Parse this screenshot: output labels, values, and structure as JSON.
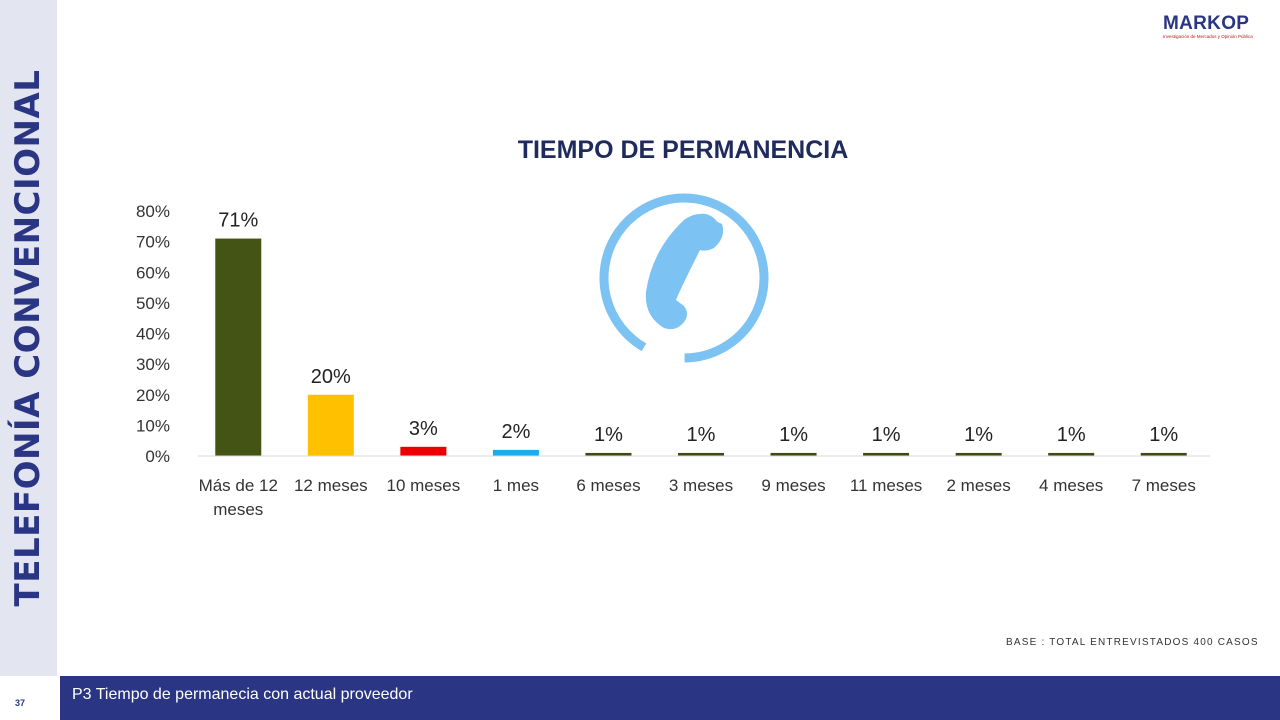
{
  "side_title": "TELEFONÍA CONVENCIONAL",
  "logo": {
    "name": "MARKOP",
    "tagline": "Investigación de Mercados y Opinión Pública"
  },
  "base_note": "BASE   : TOTAL ENTREVISTADOS 400 CASOS",
  "footer": {
    "text": "P3 Tiempo de permanecia con actual proveedor",
    "page_number": "37"
  },
  "chart_data": {
    "type": "bar",
    "title": "TIEMPO DE PERMANENCIA",
    "xlabel": "",
    "ylabel": "",
    "ylim": [
      0,
      80
    ],
    "yticks": [
      "0%",
      "10%",
      "20%",
      "30%",
      "40%",
      "50%",
      "60%",
      "70%",
      "80%"
    ],
    "grid": false,
    "categories": [
      "Más de 12 meses",
      "12 meses",
      "10 meses",
      "1 mes",
      "6 meses",
      "3 meses",
      "9 meses",
      "11 meses",
      "2 meses",
      "4 meses",
      "7 meses"
    ],
    "values": [
      71,
      20,
      3,
      2,
      1,
      1,
      1,
      1,
      1,
      1,
      1
    ],
    "data_labels": [
      "71%",
      "20%",
      "3%",
      "2%",
      "1%",
      "1%",
      "1%",
      "1%",
      "1%",
      "1%",
      "1%"
    ],
    "colors": [
      "#435414",
      "#ffc000",
      "#ee0000",
      "#1cade4",
      "#3d4a12",
      "#3d4a12",
      "#3d4a12",
      "#3d4a12",
      "#3d4a12",
      "#3d4a12",
      "#3d4a12"
    ],
    "decoration": "phone-icon"
  },
  "colors": {
    "accent": "#2a3683",
    "phone_icon": "#7cc2f2"
  }
}
